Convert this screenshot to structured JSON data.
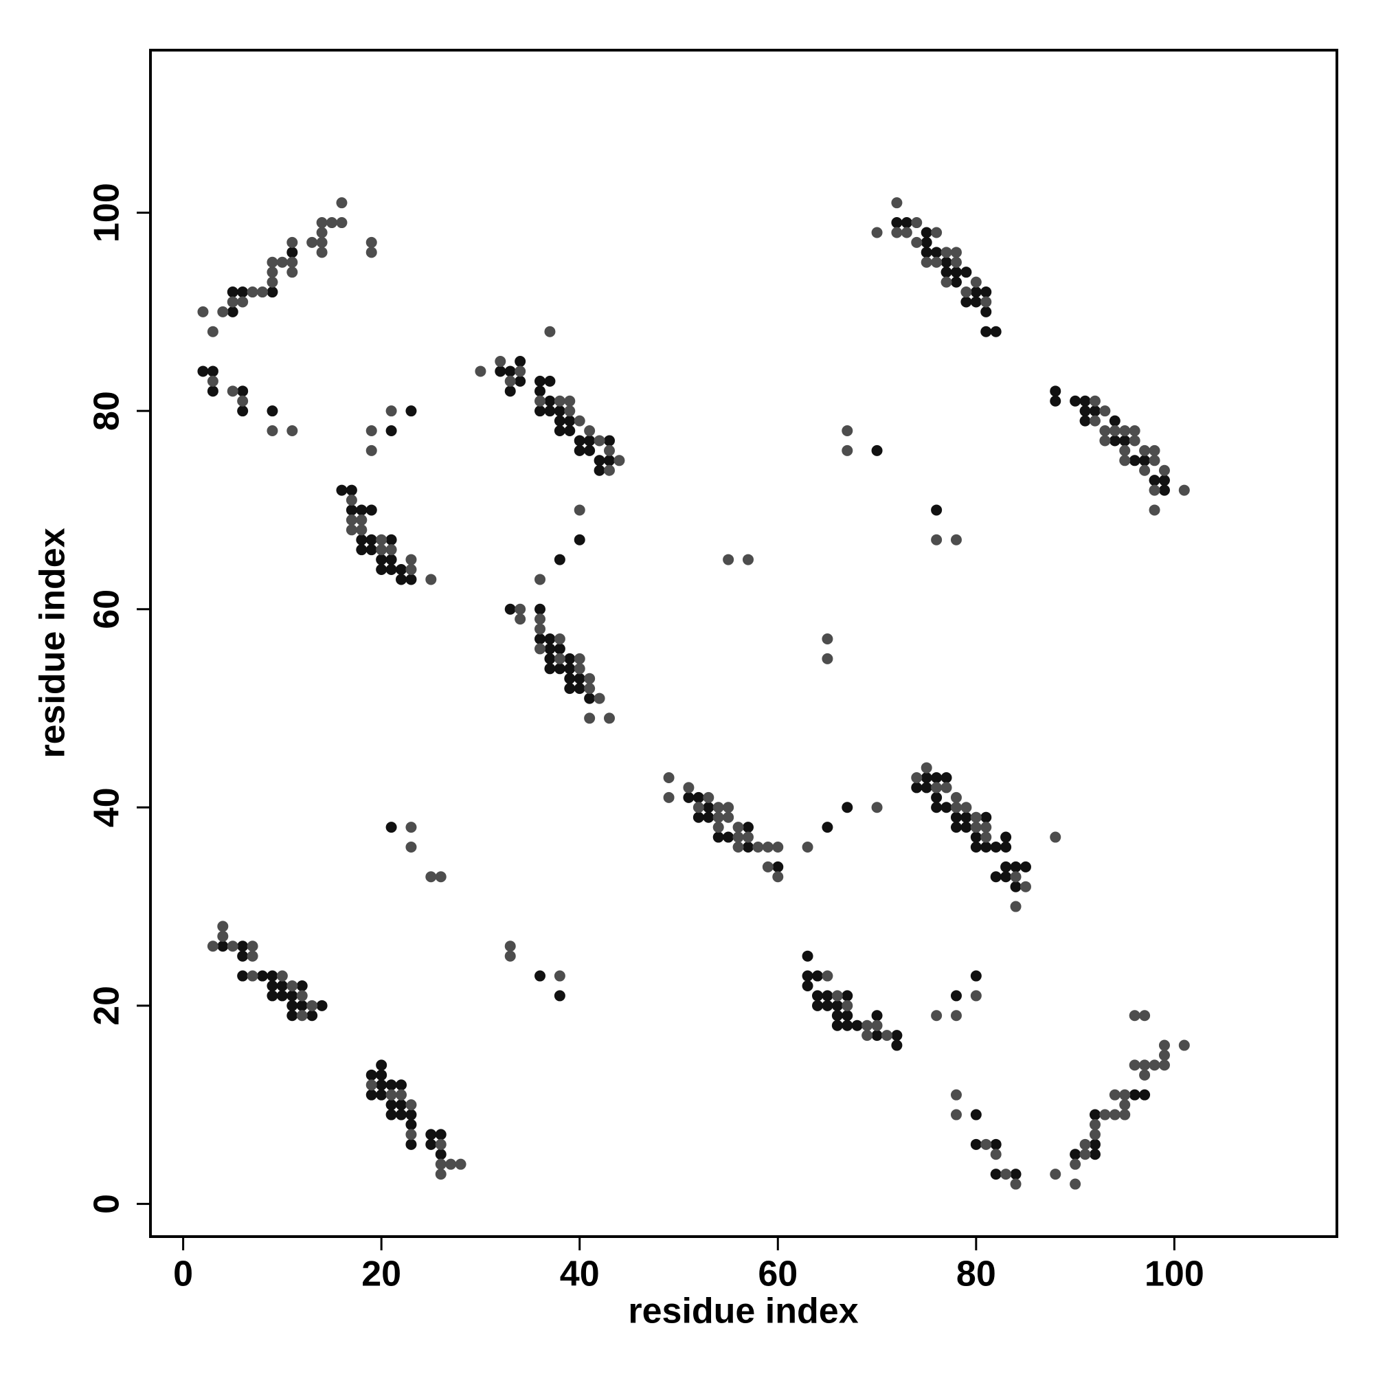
{
  "chart_data": {
    "type": "scatter",
    "xlabel": "residue index",
    "ylabel": "residue index",
    "xlim": [
      -3.3,
      116.4
    ],
    "ylim": [
      -3.3,
      116.4
    ],
    "xticks": [
      0,
      20,
      40,
      60,
      80,
      100
    ],
    "yticks": [
      0,
      20,
      40,
      60,
      80,
      100
    ],
    "grid": false,
    "series": [
      {
        "color": "#111111",
        "x": [
          5,
          5,
          6,
          9,
          11,
          2,
          3,
          3,
          6,
          6,
          9,
          21,
          23,
          16,
          17,
          17,
          18,
          18,
          18,
          19,
          19,
          19,
          20,
          20,
          21,
          21,
          21,
          22,
          22,
          23,
          32,
          33,
          33,
          34,
          34,
          36,
          36,
          36,
          37,
          37,
          37,
          38,
          38,
          38,
          39,
          39,
          40,
          40,
          41,
          41,
          42,
          42,
          43,
          43,
          40,
          38,
          33,
          36,
          36,
          37,
          37,
          37,
          37,
          38,
          38,
          39,
          39,
          39,
          39,
          40,
          40,
          41,
          21,
          4,
          6,
          6,
          6,
          8,
          9,
          9,
          9,
          10,
          10,
          11,
          11,
          11,
          12,
          12,
          13,
          14,
          19,
          19,
          20,
          20,
          20,
          20,
          21,
          21,
          21,
          22,
          22,
          22,
          23,
          23,
          23,
          25,
          25,
          26,
          26,
          36,
          38,
          51,
          52,
          52,
          53,
          53,
          54,
          55,
          57,
          57,
          60,
          65,
          67,
          70,
          76,
          72,
          73,
          75,
          75,
          75,
          76,
          77,
          77,
          78,
          78,
          79,
          79,
          80,
          80,
          81,
          81,
          81,
          82,
          88,
          88,
          90,
          91,
          91,
          91,
          92,
          94,
          94,
          95,
          96,
          97,
          98,
          99,
          99,
          74,
          75,
          75,
          76,
          76,
          76,
          77,
          77,
          78,
          78,
          79,
          79,
          80,
          80,
          81,
          81,
          82,
          82,
          83,
          83,
          83,
          83,
          84,
          84,
          85,
          63,
          63,
          63,
          64,
          64,
          64,
          65,
          65,
          66,
          66,
          66,
          67,
          67,
          67,
          68,
          70,
          70,
          72,
          72,
          78,
          80,
          80,
          80,
          82,
          82,
          84,
          90,
          92,
          92,
          92,
          96,
          97
        ],
        "values": [
          90,
          92,
          92,
          92,
          96,
          84,
          84,
          82,
          82,
          80,
          80,
          78,
          80,
          72,
          72,
          70,
          70,
          67,
          66,
          70,
          67,
          66,
          65,
          64,
          67,
          65,
          64,
          64,
          63,
          63,
          84,
          84,
          82,
          85,
          83,
          83,
          82,
          80,
          83,
          81,
          80,
          80,
          79,
          78,
          79,
          78,
          77,
          76,
          77,
          76,
          75,
          74,
          77,
          75,
          67,
          65,
          60,
          60,
          57,
          57,
          56,
          55,
          54,
          56,
          54,
          55,
          54,
          53,
          52,
          53,
          52,
          51,
          38,
          26,
          26,
          25,
          23,
          23,
          23,
          22,
          21,
          22,
          21,
          21,
          20,
          19,
          22,
          20,
          19,
          20,
          13,
          11,
          14,
          13,
          12,
          11,
          12,
          10,
          9,
          12,
          10,
          9,
          9,
          8,
          6,
          7,
          6,
          7,
          5,
          23,
          21,
          41,
          41,
          39,
          40,
          39,
          37,
          37,
          38,
          36,
          34,
          38,
          40,
          76,
          70,
          99,
          99,
          98,
          97,
          96,
          96,
          95,
          94,
          94,
          93,
          94,
          91,
          92,
          91,
          92,
          90,
          88,
          88,
          82,
          81,
          81,
          81,
          80,
          79,
          80,
          79,
          77,
          77,
          75,
          75,
          73,
          73,
          72,
          42,
          43,
          42,
          43,
          41,
          40,
          43,
          40,
          39,
          38,
          39,
          38,
          37,
          36,
          39,
          36,
          36,
          33,
          37,
          36,
          34,
          33,
          34,
          32,
          34,
          25,
          23,
          22,
          23,
          21,
          20,
          21,
          20,
          20,
          19,
          18,
          21,
          19,
          18,
          18,
          19,
          17,
          17,
          16,
          21,
          23,
          9,
          6,
          6,
          3,
          3,
          5,
          6,
          5,
          9,
          11,
          11
        ]
      },
      {
        "color": "#4d4d4d",
        "x": [
          2,
          3,
          4,
          5,
          6,
          7,
          8,
          9,
          9,
          9,
          10,
          11,
          11,
          11,
          13,
          14,
          14,
          14,
          14,
          15,
          16,
          16,
          19,
          19,
          3,
          5,
          6,
          9,
          11,
          19,
          19,
          21,
          17,
          17,
          17,
          18,
          18,
          20,
          20,
          21,
          23,
          23,
          25,
          30,
          32,
          33,
          34,
          36,
          37,
          38,
          39,
          39,
          40,
          41,
          42,
          43,
          43,
          44,
          40,
          36,
          34,
          34,
          36,
          36,
          36,
          38,
          38,
          40,
          40,
          41,
          41,
          41,
          42,
          43,
          23,
          23,
          25,
          26,
          3,
          4,
          4,
          5,
          7,
          7,
          7,
          10,
          11,
          12,
          12,
          13,
          19,
          21,
          22,
          23,
          23,
          26,
          26,
          26,
          27,
          28,
          33,
          33,
          38,
          49,
          49,
          51,
          52,
          53,
          54,
          54,
          54,
          55,
          55,
          56,
          56,
          56,
          57,
          58,
          59,
          59,
          60,
          60,
          55,
          57,
          63,
          70,
          65,
          65,
          67,
          67,
          70,
          76,
          78,
          88,
          72,
          72,
          73,
          74,
          74,
          75,
          76,
          76,
          77,
          77,
          78,
          78,
          79,
          80,
          81,
          92,
          92,
          93,
          93,
          93,
          94,
          95,
          95,
          95,
          96,
          96,
          97,
          97,
          98,
          98,
          98,
          98,
          99,
          101,
          74,
          75,
          76,
          77,
          78,
          78,
          79,
          80,
          80,
          81,
          81,
          84,
          84,
          85,
          65,
          66,
          67,
          69,
          69,
          70,
          71,
          76,
          78,
          80,
          78,
          78,
          81,
          82,
          83,
          84,
          88,
          90,
          90,
          91,
          91,
          92,
          92,
          93,
          94,
          94,
          95,
          95,
          95,
          96,
          96,
          97,
          97,
          97,
          98,
          99,
          99,
          99,
          101
        ],
        "values": [
          90,
          88,
          90,
          91,
          91,
          92,
          92,
          93,
          94,
          95,
          95,
          95,
          94,
          97,
          97,
          97,
          96,
          98,
          99,
          99,
          99,
          101,
          97,
          96,
          83,
          82,
          81,
          78,
          78,
          78,
          76,
          80,
          71,
          69,
          68,
          69,
          68,
          67,
          66,
          66,
          65,
          64,
          63,
          84,
          85,
          83,
          84,
          81,
          88,
          81,
          81,
          80,
          79,
          78,
          77,
          76,
          74,
          75,
          70,
          63,
          60,
          59,
          59,
          58,
          56,
          57,
          55,
          55,
          54,
          53,
          52,
          49,
          51,
          49,
          38,
          36,
          33,
          33,
          26,
          28,
          27,
          26,
          26,
          25,
          23,
          23,
          22,
          21,
          19,
          20,
          12,
          11,
          11,
          10,
          7,
          6,
          4,
          3,
          4,
          4,
          26,
          25,
          23,
          43,
          41,
          42,
          40,
          41,
          40,
          39,
          38,
          40,
          39,
          38,
          37,
          36,
          37,
          36,
          36,
          34,
          36,
          33,
          65,
          65,
          36,
          40,
          57,
          55,
          78,
          76,
          98,
          67,
          67,
          37,
          101,
          98,
          98,
          99,
          97,
          95,
          98,
          95,
          96,
          93,
          96,
          95,
          92,
          93,
          91,
          81,
          79,
          80,
          78,
          77,
          78,
          78,
          76,
          75,
          78,
          77,
          76,
          74,
          76,
          75,
          72,
          70,
          74,
          72,
          43,
          44,
          42,
          42,
          41,
          40,
          40,
          39,
          38,
          38,
          37,
          33,
          30,
          32,
          23,
          21,
          20,
          17,
          18,
          18,
          17,
          19,
          19,
          21,
          11,
          9,
          6,
          5,
          3,
          2,
          3,
          2,
          4,
          5,
          6,
          7,
          8,
          9,
          9,
          11,
          11,
          10,
          9,
          14,
          19,
          19,
          14,
          13,
          14,
          16,
          15,
          14,
          16
        ]
      }
    ]
  }
}
